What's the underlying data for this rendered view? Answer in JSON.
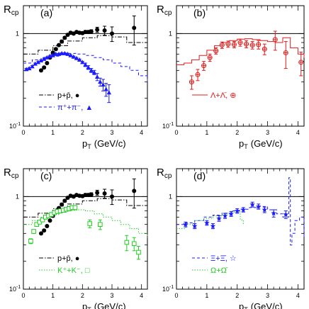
{
  "y_title": "R",
  "y_title_sub": "cp",
  "x_title": "p",
  "x_title_sub": "T",
  "x_unit": "(GeV/c)",
  "colors": {
    "black": "#000000",
    "blue": "#1a1aff",
    "red": "#e21b1b",
    "green": "#22cc22",
    "grey": "#444444"
  },
  "chart_data": [
    {
      "type": "scatter",
      "panel_label": "(a)",
      "xlim": [
        0,
        4.2
      ],
      "ylim": [
        0.1,
        2
      ],
      "log_y": true,
      "xticks": [
        0,
        1,
        2,
        3,
        4
      ],
      "ytick_labels": [
        "1",
        "10^-1"
      ],
      "reference_line_y": 1,
      "legend": [
        {
          "text": "p+p̄,",
          "marker": "●",
          "line": "dashdot",
          "color": "#000000"
        },
        {
          "text": "π⁺+π⁻,",
          "marker": "▲",
          "line": "dashed",
          "color": "#1a1aff"
        }
      ],
      "series": [
        {
          "name": "p+p̄",
          "marker": "circle",
          "color": "#000000",
          "x": [
            0.6,
            0.7,
            0.8,
            0.9,
            1.0,
            1.1,
            1.2,
            1.3,
            1.4,
            1.5,
            1.6,
            1.7,
            1.8,
            1.9,
            2.0,
            2.1,
            2.2,
            2.3,
            2.5,
            2.75,
            3.0,
            3.75
          ],
          "y": [
            0.4,
            0.43,
            0.48,
            0.55,
            0.62,
            0.68,
            0.75,
            0.82,
            0.9,
            0.97,
            1.02,
            1.0,
            1.04,
            1.02,
            1.01,
            1.04,
            1.04,
            1.05,
            1.1,
            1.08,
            1.0,
            1.15
          ],
          "err": [
            0.01,
            0.01,
            0.01,
            0.01,
            0.02,
            0.02,
            0.02,
            0.03,
            0.03,
            0.03,
            0.03,
            0.03,
            0.03,
            0.03,
            0.03,
            0.04,
            0.04,
            0.05,
            0.07,
            0.12,
            0.18,
            0.4
          ]
        },
        {
          "name": "π⁺+π⁻",
          "marker": "triangle",
          "color": "#1a1aff",
          "x": [
            0.1,
            0.2,
            0.3,
            0.4,
            0.5,
            0.6,
            0.7,
            0.8,
            0.9,
            1.0,
            1.1,
            1.2,
            1.3,
            1.4,
            1.5,
            1.6,
            1.7,
            1.8,
            1.9,
            2.0,
            2.1,
            2.2,
            2.3,
            2.4,
            2.5,
            2.6,
            2.7,
            2.8,
            2.9
          ],
          "y": [
            0.41,
            0.42,
            0.44,
            0.47,
            0.49,
            0.51,
            0.53,
            0.55,
            0.57,
            0.58,
            0.6,
            0.6,
            0.61,
            0.61,
            0.6,
            0.58,
            0.56,
            0.54,
            0.52,
            0.49,
            0.46,
            0.43,
            0.4,
            0.38,
            0.34,
            0.3,
            0.28,
            0.25,
            0.23
          ],
          "err": [
            0.01,
            0.01,
            0.01,
            0.01,
            0.01,
            0.01,
            0.01,
            0.01,
            0.01,
            0.01,
            0.01,
            0.01,
            0.01,
            0.01,
            0.01,
            0.01,
            0.01,
            0.01,
            0.01,
            0.01,
            0.02,
            0.02,
            0.02,
            0.02,
            0.03,
            0.03,
            0.04,
            0.04,
            0.05
          ]
        }
      ],
      "bands": [
        {
          "style": "dashdot",
          "color": "#000000",
          "x": [
            0,
            0.5,
            1.0,
            1.5,
            2.0,
            2.5,
            3.0,
            3.5,
            4.2
          ],
          "y": [
            0.6,
            0.66,
            0.74,
            0.83,
            0.9,
            0.95,
            0.92,
            0.8,
            0.82
          ]
        },
        {
          "style": "dashed",
          "color": "#1a1aff",
          "x": [
            0,
            0.3,
            0.6,
            0.9,
            1.2,
            1.5,
            1.8,
            2.1,
            2.4,
            2.7,
            3.0,
            3.3,
            3.6,
            3.9,
            4.2
          ],
          "y": [
            0.48,
            0.52,
            0.55,
            0.57,
            0.6,
            0.61,
            0.6,
            0.58,
            0.55,
            0.52,
            0.48,
            0.44,
            0.4,
            0.35,
            0.3
          ]
        }
      ]
    },
    {
      "type": "scatter",
      "panel_label": "(b)",
      "xlim": [
        0,
        4.2
      ],
      "ylim": [
        0.1,
        2
      ],
      "log_y": true,
      "xticks": [
        0,
        1,
        2,
        3,
        4
      ],
      "ytick_labels": [
        "1",
        "10^-1"
      ],
      "reference_line_y": 1,
      "legend": [
        {
          "text": "Λ+Λ̄,",
          "marker": "⊕",
          "line": "solid",
          "color": "#e21b1b"
        }
      ],
      "series": [
        {
          "name": "Λ+Λ̄",
          "marker": "cross-circle",
          "color": "#e21b1b",
          "x": [
            0.5,
            0.7,
            0.9,
            1.1,
            1.3,
            1.5,
            1.7,
            1.9,
            2.1,
            2.3,
            2.5,
            2.7,
            2.9,
            3.25,
            3.6,
            4.1
          ],
          "y": [
            0.3,
            0.36,
            0.45,
            0.55,
            0.65,
            0.75,
            0.77,
            0.76,
            0.8,
            0.77,
            0.75,
            0.76,
            0.68,
            0.86,
            0.62,
            0.49
          ],
          "err": [
            0.05,
            0.05,
            0.05,
            0.05,
            0.05,
            0.06,
            0.06,
            0.06,
            0.07,
            0.07,
            0.07,
            0.08,
            0.09,
            0.2,
            0.2,
            0.14
          ]
        }
      ],
      "bands": [
        {
          "style": "solid",
          "color": "#e21b1b",
          "x": [
            0,
            0.25,
            0.5,
            0.75,
            1.0,
            1.25,
            1.5,
            1.75,
            2.0,
            2.25,
            2.5,
            2.75,
            3.0,
            3.25,
            3.5,
            3.75,
            4.0,
            4.2
          ],
          "y": [
            0.46,
            0.48,
            0.52,
            0.58,
            0.66,
            0.74,
            0.8,
            0.84,
            0.87,
            0.88,
            0.86,
            0.84,
            0.82,
            0.8,
            0.9,
            0.7,
            0.6,
            0.55
          ]
        }
      ]
    },
    {
      "type": "scatter",
      "panel_label": "(c)",
      "xlim": [
        0,
        4.2
      ],
      "ylim": [
        0.1,
        2
      ],
      "log_y": true,
      "xticks": [
        0,
        1,
        2,
        3,
        4
      ],
      "ytick_labels": [
        "1",
        "10^-1"
      ],
      "reference_line_y": 1,
      "legend": [
        {
          "text": "p+p̄,",
          "marker": "●",
          "line": "dashdot",
          "color": "#000000"
        },
        {
          "text": "K⁺+K⁻,",
          "marker": "□",
          "line": "dotted",
          "color": "#22cc22"
        }
      ],
      "series": [
        {
          "name": "p+p̄",
          "marker": "circle",
          "color": "#000000",
          "x": [
            0.6,
            0.7,
            0.8,
            0.9,
            1.0,
            1.1,
            1.2,
            1.3,
            1.4,
            1.5,
            1.6,
            1.7,
            1.8,
            1.9,
            2.0,
            2.1,
            2.2,
            2.3,
            2.5,
            2.75,
            3.0,
            3.75
          ],
          "y": [
            0.4,
            0.43,
            0.48,
            0.55,
            0.62,
            0.68,
            0.75,
            0.82,
            0.9,
            0.97,
            1.02,
            1.0,
            1.04,
            1.02,
            1.01,
            1.04,
            1.04,
            1.05,
            1.1,
            1.08,
            1.0,
            1.15
          ],
          "err": [
            0.01,
            0.01,
            0.01,
            0.01,
            0.02,
            0.02,
            0.02,
            0.03,
            0.03,
            0.03,
            0.03,
            0.03,
            0.03,
            0.03,
            0.03,
            0.04,
            0.04,
            0.05,
            0.07,
            0.12,
            0.18,
            0.4
          ]
        },
        {
          "name": "K⁺+K⁻",
          "marker": "square",
          "color": "#22cc22",
          "x": [
            0.25,
            0.35,
            0.45,
            0.55,
            0.65,
            0.75,
            0.85,
            0.95,
            1.05,
            1.15,
            1.25,
            1.35,
            1.45,
            1.55,
            1.65,
            1.75,
            2.25,
            2.6,
            3.5,
            3.75,
            3.9
          ],
          "y": [
            0.33,
            0.42,
            0.5,
            0.53,
            0.56,
            0.6,
            0.62,
            0.64,
            0.67,
            0.69,
            0.7,
            0.71,
            0.73,
            0.74,
            0.76,
            0.76,
            0.51,
            0.5,
            0.32,
            0.31,
            0.25
          ],
          "err": [
            0.02,
            0.02,
            0.02,
            0.02,
            0.02,
            0.03,
            0.03,
            0.03,
            0.03,
            0.03,
            0.03,
            0.03,
            0.03,
            0.04,
            0.04,
            0.04,
            0.05,
            0.06,
            0.06,
            0.05,
            0.04
          ]
        }
      ],
      "bands": [
        {
          "style": "dashdot",
          "color": "#000000",
          "x": [
            0,
            0.5,
            1.0,
            1.5,
            2.0,
            2.5,
            3.0,
            3.5,
            4.2
          ],
          "y": [
            0.6,
            0.66,
            0.74,
            0.83,
            0.9,
            0.95,
            0.92,
            0.8,
            0.82
          ]
        },
        {
          "style": "dotted",
          "color": "#22cc22",
          "x": [
            0,
            0.3,
            0.6,
            0.9,
            1.2,
            1.5,
            1.8,
            2.1,
            2.4,
            2.7,
            3.0,
            3.3,
            3.6,
            3.9,
            4.2
          ],
          "y": [
            0.5,
            0.55,
            0.6,
            0.64,
            0.68,
            0.71,
            0.72,
            0.7,
            0.65,
            0.6,
            0.55,
            0.5,
            0.45,
            0.4,
            0.36
          ]
        }
      ]
    },
    {
      "type": "scatter",
      "panel_label": "(d)",
      "xlim": [
        0,
        4.2
      ],
      "ylim": [
        0.1,
        2
      ],
      "log_y": true,
      "xticks": [
        0,
        1,
        2,
        3,
        4
      ],
      "ytick_labels": [
        "1",
        "10^-1"
      ],
      "reference_line_y": 1,
      "legend": [
        {
          "text": "Ξ+Ξ̄,",
          "marker": "☆",
          "line": "dashed",
          "color": "#1a1aff"
        },
        {
          "text": "Ω+Ω̄",
          "marker": "",
          "line": "dotted",
          "color": "#22cc22"
        }
      ],
      "series": [
        {
          "name": "Ξ+Ξ̄",
          "marker": "star",
          "color": "#1a1aff",
          "x": [
            0.3,
            0.6,
            1.0,
            1.2,
            1.4,
            1.6,
            1.8,
            2.0,
            2.2,
            2.5,
            2.7,
            2.9,
            3.2,
            3.6
          ],
          "y": [
            0.5,
            0.48,
            0.52,
            0.48,
            0.58,
            0.62,
            0.65,
            0.7,
            0.72,
            0.82,
            0.78,
            0.72,
            0.66,
            0.64
          ],
          "err": [
            0.03,
            0.03,
            0.03,
            0.03,
            0.04,
            0.04,
            0.04,
            0.04,
            0.04,
            0.05,
            0.05,
            0.05,
            0.06,
            0.06
          ]
        }
      ],
      "bands": [
        {
          "style": "dashed",
          "color": "#1a1aff",
          "x": [
            0,
            0.3,
            0.6,
            0.9,
            1.2,
            1.5,
            1.8,
            2.1,
            2.4,
            2.7,
            3.0,
            3.3,
            3.5,
            3.7,
            3.75,
            3.8,
            3.9,
            4.05,
            4.2
          ],
          "y": [
            0.5,
            0.52,
            0.55,
            0.6,
            0.63,
            0.66,
            0.7,
            0.73,
            0.76,
            0.78,
            0.72,
            0.65,
            0.6,
            1.6,
            0.3,
            0.4,
            0.55,
            0.6,
            0.35
          ]
        },
        {
          "style": "dotted",
          "color": "#22cc22",
          "x": [
            0,
            0.3,
            0.6,
            0.9,
            1.2,
            1.5,
            1.8,
            2.1,
            2.2
          ],
          "y": [
            0.45,
            0.5,
            0.55,
            0.58,
            0.62,
            0.65,
            0.68,
            0.56,
            0.5
          ]
        }
      ]
    }
  ]
}
